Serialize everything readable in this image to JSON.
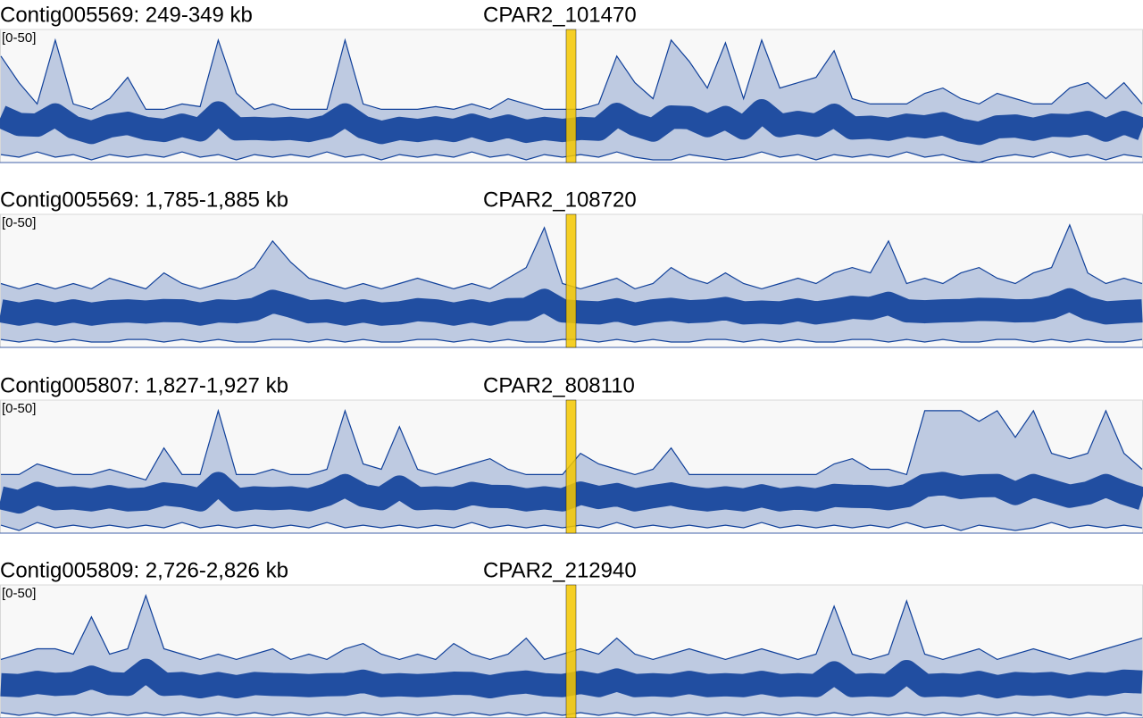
{
  "chart_data": [
    {
      "type": "line",
      "title": "Contig005569: 249-349 kb",
      "annotation": "CPAR2_101470",
      "range_label": "[0-50]",
      "ylim": [
        0,
        50
      ],
      "highlight_color": "#f5c800",
      "series": [
        {
          "color": "#10409a",
          "values": [
            40,
            30,
            22,
            46,
            22,
            20,
            24,
            32,
            20,
            20,
            22,
            21,
            46,
            26,
            20,
            22,
            20,
            20,
            20,
            46,
            22,
            20,
            20,
            20,
            21,
            20,
            22,
            20,
            24,
            22,
            20,
            20,
            20,
            22,
            40,
            30,
            24,
            46,
            38,
            28,
            45,
            24,
            46,
            28,
            30,
            32,
            42,
            24,
            22,
            22,
            22,
            26,
            28,
            24,
            22,
            26,
            24,
            22,
            22,
            28,
            30,
            24,
            30,
            22
          ]
        },
        {
          "color": "#10409a",
          "values": [
            3,
            2,
            4,
            2,
            3,
            1,
            3,
            2,
            3,
            2,
            4,
            2,
            3,
            1,
            3,
            2,
            3,
            2,
            4,
            2,
            3,
            1,
            3,
            2,
            3,
            2,
            4,
            2,
            3,
            1,
            3,
            2,
            3,
            2,
            4,
            2,
            1,
            1,
            3,
            2,
            1,
            2,
            4,
            2,
            3,
            1,
            3,
            2,
            3,
            2,
            4,
            2,
            3,
            1,
            0,
            2,
            3,
            2,
            4,
            2,
            3,
            1,
            3,
            2
          ]
        }
      ]
    },
    {
      "type": "line",
      "title": "Contig005569: 1,785-1,885 kb",
      "annotation": "CPAR2_108720",
      "range_label": "[0-50]",
      "ylim": [
        0,
        50
      ],
      "highlight_color": "#f5c800",
      "series": [
        {
          "color": "#10409a",
          "values": [
            24,
            22,
            24,
            22,
            24,
            22,
            26,
            24,
            22,
            28,
            24,
            22,
            24,
            26,
            30,
            40,
            32,
            26,
            24,
            22,
            24,
            22,
            24,
            26,
            24,
            22,
            24,
            22,
            26,
            30,
            45,
            24,
            22,
            24,
            26,
            22,
            24,
            30,
            26,
            24,
            28,
            24,
            22,
            24,
            26,
            24,
            28,
            30,
            28,
            40,
            24,
            26,
            24,
            28,
            30,
            26,
            24,
            28,
            30,
            46,
            28,
            24,
            26,
            24
          ]
        },
        {
          "color": "#10409a",
          "values": [
            3,
            2,
            3,
            2,
            3,
            2,
            2,
            3,
            3,
            2,
            3,
            2,
            3,
            2,
            2,
            3,
            3,
            2,
            3,
            2,
            3,
            2,
            2,
            3,
            3,
            2,
            3,
            2,
            3,
            2,
            2,
            3,
            3,
            2,
            3,
            2,
            3,
            2,
            2,
            3,
            3,
            2,
            3,
            2,
            3,
            2,
            2,
            3,
            3,
            2,
            3,
            2,
            3,
            2,
            2,
            3,
            3,
            2,
            3,
            2,
            3,
            2,
            2,
            3
          ]
        }
      ]
    },
    {
      "type": "line",
      "title": "Contig005807: 1,827-1,927 kb",
      "annotation": "CPAR2_808110",
      "range_label": "[0-50]",
      "ylim": [
        0,
        50
      ],
      "highlight_color": "#f5c800",
      "series": [
        {
          "color": "#10409a",
          "values": [
            22,
            22,
            26,
            24,
            22,
            22,
            24,
            22,
            20,
            32,
            22,
            22,
            46,
            22,
            22,
            24,
            22,
            22,
            24,
            46,
            26,
            24,
            40,
            24,
            22,
            24,
            26,
            28,
            24,
            22,
            22,
            22,
            30,
            26,
            24,
            22,
            24,
            32,
            22,
            22,
            22,
            22,
            22,
            22,
            22,
            22,
            26,
            28,
            24,
            24,
            22,
            46,
            46,
            46,
            42,
            46,
            36,
            46,
            30,
            28,
            30,
            46,
            30,
            24
          ]
        },
        {
          "color": "#10409a",
          "values": [
            3,
            1,
            4,
            2,
            3,
            2,
            3,
            2,
            3,
            2,
            4,
            2,
            3,
            2,
            3,
            2,
            3,
            2,
            4,
            2,
            3,
            2,
            3,
            2,
            3,
            2,
            4,
            2,
            3,
            2,
            3,
            2,
            3,
            2,
            4,
            2,
            3,
            2,
            3,
            2,
            3,
            2,
            4,
            2,
            3,
            2,
            3,
            2,
            3,
            2,
            4,
            2,
            3,
            1,
            3,
            2,
            1,
            2,
            4,
            2,
            3,
            2,
            3,
            2
          ]
        }
      ]
    },
    {
      "type": "line",
      "title": "Contig005809: 2,726-2,826 kb",
      "annotation": "CPAR2_212940",
      "range_label": "[0-50]",
      "ylim": [
        0,
        50
      ],
      "highlight_color": "#f5c800",
      "series": [
        {
          "color": "#10409a",
          "values": [
            22,
            24,
            26,
            26,
            24,
            38,
            24,
            26,
            46,
            26,
            24,
            22,
            24,
            22,
            24,
            26,
            22,
            24,
            22,
            26,
            28,
            24,
            22,
            24,
            22,
            28,
            24,
            22,
            24,
            30,
            22,
            24,
            26,
            24,
            30,
            24,
            22,
            24,
            26,
            24,
            22,
            24,
            26,
            24,
            22,
            24,
            42,
            24,
            22,
            24,
            44,
            24,
            22,
            24,
            26,
            22,
            24,
            26,
            24,
            22,
            24,
            26,
            28,
            30
          ]
        },
        {
          "color": "#10409a",
          "values": [
            2,
            1,
            2,
            1,
            2,
            1,
            2,
            1,
            2,
            1,
            2,
            1,
            2,
            1,
            2,
            1,
            2,
            1,
            2,
            1,
            2,
            1,
            2,
            1,
            2,
            1,
            2,
            1,
            2,
            1,
            2,
            1,
            2,
            1,
            2,
            1,
            2,
            1,
            2,
            1,
            2,
            1,
            2,
            1,
            2,
            1,
            2,
            1,
            2,
            1,
            2,
            1,
            2,
            1,
            2,
            1,
            2,
            1,
            2,
            1,
            2,
            1,
            2,
            1
          ]
        }
      ]
    }
  ]
}
